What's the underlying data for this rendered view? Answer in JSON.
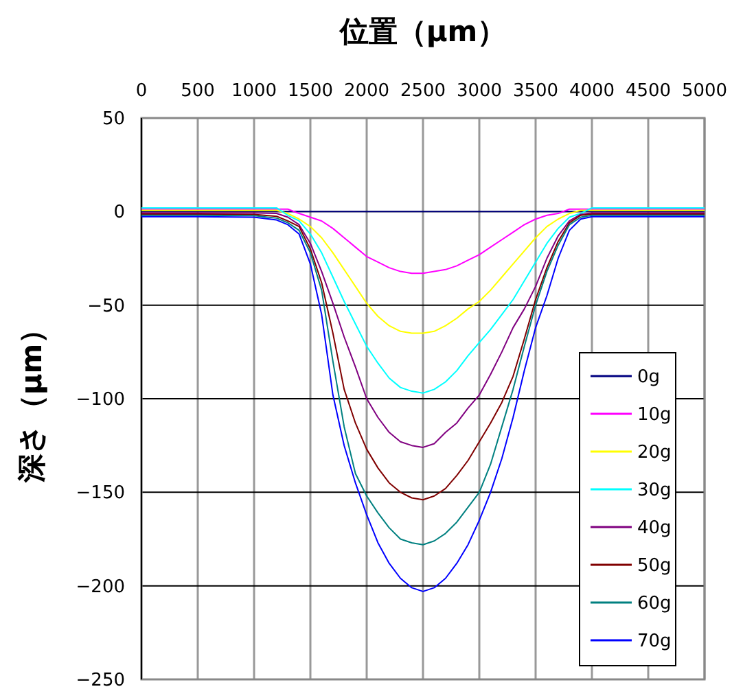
{
  "chart_data": {
    "type": "line",
    "xlabel": "位置（μm）",
    "ylabel": "深さ（μm）",
    "x": [
      0,
      500,
      1000,
      1200,
      1300,
      1400,
      1500,
      1600,
      1700,
      1800,
      1900,
      2000,
      2100,
      2200,
      2300,
      2400,
      2500,
      2600,
      2700,
      2800,
      2900,
      3000,
      3100,
      3200,
      3300,
      3400,
      3500,
      3600,
      3700,
      3800,
      3900,
      4000,
      4500,
      5000
    ],
    "series": [
      {
        "name": "0g",
        "color": "#000080",
        "values": [
          0,
          0,
          0,
          0,
          0,
          0,
          0,
          0,
          0,
          0,
          0,
          0,
          0,
          0,
          0,
          0,
          0,
          0,
          0,
          0,
          0,
          0,
          0,
          0,
          0,
          0,
          0,
          0,
          0,
          0,
          0,
          0,
          0,
          0
        ]
      },
      {
        "name": "10g",
        "color": "#ff00ff",
        "values": [
          1.3,
          1.3,
          1.3,
          1.3,
          1.3,
          -1,
          -3,
          -5,
          -9,
          -14,
          -19,
          -24,
          -27,
          -30,
          -32,
          -33,
          -33,
          -32,
          -31,
          -29,
          -26,
          -23,
          -19,
          -15,
          -11,
          -7,
          -4,
          -2,
          -1,
          1.3,
          1.3,
          1.3,
          1.3,
          1.3
        ]
      },
      {
        "name": "20g",
        "color": "#ffff00",
        "values": [
          0.7,
          0.7,
          0.7,
          0.7,
          -1,
          -4,
          -8,
          -14,
          -22,
          -31,
          -40,
          -49,
          -56,
          -61,
          -64,
          -65,
          -65,
          -64,
          -61,
          -57,
          -52,
          -48,
          -42,
          -35,
          -28,
          -21,
          -14,
          -8,
          -4,
          -1,
          0.7,
          0.7,
          0.7,
          0.7
        ]
      },
      {
        "name": "30g",
        "color": "#00ffff",
        "values": [
          2,
          2,
          2,
          2,
          -2,
          -5,
          -12,
          -22,
          -35,
          -48,
          -60,
          -72,
          -81,
          -89,
          -94,
          -96,
          -97,
          -95,
          -91,
          -85,
          -77,
          -70,
          -63,
          -55,
          -47,
          -37,
          -27,
          -17,
          -9,
          -3,
          -1,
          2,
          2,
          2
        ]
      },
      {
        "name": "40g",
        "color": "#800080",
        "values": [
          -0.7,
          -0.7,
          -0.7,
          -1,
          -3,
          -7,
          -17,
          -32,
          -49,
          -67,
          -83,
          -100,
          -110,
          -118,
          -123,
          -125,
          -126,
          -124,
          -118,
          -113,
          -105,
          -98,
          -87,
          -75,
          -62,
          -52,
          -40,
          -25,
          -13,
          -5,
          -1.5,
          -0.7,
          -0.7,
          -0.7
        ]
      },
      {
        "name": "50g",
        "color": "#800000",
        "values": [
          -1.3,
          -1.3,
          -1.5,
          -2.5,
          -5,
          -8,
          -20,
          -38,
          -65,
          -95,
          -113,
          -127,
          -137,
          -145,
          -150,
          -153,
          -154,
          -152,
          -148,
          -141,
          -133,
          -123,
          -113,
          -102,
          -88,
          -68,
          -47,
          -30,
          -16,
          -6,
          -2,
          -1.3,
          -1.3,
          -1.3
        ]
      },
      {
        "name": "60g",
        "color": "#008080",
        "values": [
          -2,
          -2,
          -2.2,
          -3.5,
          -6,
          -10,
          -22,
          -42,
          -80,
          -115,
          -140,
          -152,
          -161,
          -169,
          -175,
          -177,
          -178,
          -176,
          -172,
          -166,
          -158,
          -150,
          -135,
          -115,
          -95,
          -72,
          -50,
          -32,
          -18,
          -7,
          -3,
          -2,
          -2,
          -2
        ]
      },
      {
        "name": "70g",
        "color": "#0000ff",
        "values": [
          -2.7,
          -2.7,
          -3,
          -4.5,
          -7,
          -12,
          -28,
          -55,
          -98,
          -125,
          -145,
          -162,
          -177,
          -188,
          -196,
          -201,
          -203,
          -201,
          -196,
          -188,
          -178,
          -165,
          -150,
          -132,
          -110,
          -85,
          -62,
          -45,
          -25,
          -10,
          -4,
          -2.7,
          -2.7,
          -2.7
        ]
      }
    ],
    "xlim": [
      0,
      5000
    ],
    "xticks": [
      0,
      500,
      1000,
      1500,
      2000,
      2500,
      3000,
      3500,
      4000,
      4500,
      5000
    ],
    "ylim": [
      -250,
      50
    ],
    "yticks": [
      {
        "value": 50,
        "label": "50"
      },
      {
        "value": 0,
        "label": "0"
      },
      {
        "value": -50,
        "label": "−50"
      },
      {
        "value": -100,
        "label": "−100"
      },
      {
        "value": -150,
        "label": "−150"
      },
      {
        "value": -200,
        "label": "−200"
      },
      {
        "value": -250,
        "label": "−250"
      }
    ],
    "grid": true,
    "legend": "bottom right",
    "marker": "none",
    "line_style": "solid"
  }
}
